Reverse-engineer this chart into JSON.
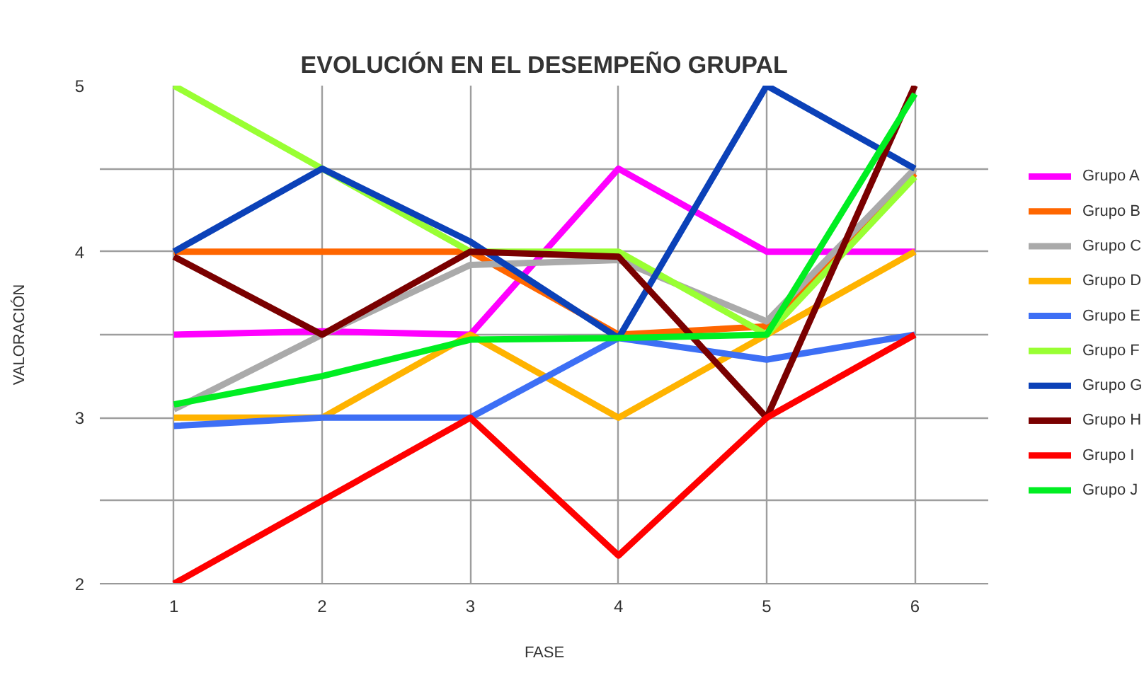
{
  "chart_data": {
    "type": "line",
    "title": "EVOLUCIÓN EN EL DESEMPEÑO GRUPAL",
    "xlabel": "FASE",
    "ylabel": "VALORACIÓN",
    "x": [
      1,
      2,
      3,
      4,
      5,
      6
    ],
    "xlim": [
      0.5,
      6.5
    ],
    "xticks": [
      1,
      2,
      3,
      4,
      5,
      6
    ],
    "ylim": [
      2,
      5
    ],
    "yticks": [
      2,
      {
        "value": 2.5,
        "label": null
      },
      3,
      {
        "value": 3.5,
        "label": null
      },
      4,
      {
        "value": 4.5,
        "label": null
      },
      5
    ],
    "grid": true,
    "legend": "right",
    "line_style": "solid",
    "series": [
      {
        "name": "Grupo A",
        "color": "#ff00ff",
        "values": [
          3.5,
          3.52,
          3.5,
          4.5,
          4,
          4
        ]
      },
      {
        "name": "Grupo B",
        "color": "#ff6600",
        "values": [
          4,
          4,
          4,
          3.5,
          3.55,
          4.47
        ]
      },
      {
        "name": "Grupo C",
        "color": "#aaaaaa",
        "values": [
          3.05,
          3.5,
          3.92,
          3.95,
          3.58,
          4.5
        ]
      },
      {
        "name": "Grupo D",
        "color": "#ffb300",
        "values": [
          3,
          3,
          3.5,
          3,
          3.5,
          4
        ]
      },
      {
        "name": "Grupo E",
        "color": "#3d6ff5",
        "values": [
          2.95,
          3,
          3,
          3.48,
          3.35,
          3.5
        ]
      },
      {
        "name": "Grupo F",
        "color": "#99ff33",
        "values": [
          5,
          4.5,
          4,
          4,
          3.5,
          4.45
        ]
      },
      {
        "name": "Grupo G",
        "color": "#0b41b8",
        "values": [
          4,
          4.5,
          4.06,
          3.48,
          5,
          4.5
        ]
      },
      {
        "name": "Grupo H",
        "color": "#7a0000",
        "values": [
          3.97,
          3.5,
          4,
          3.97,
          3,
          5
        ]
      },
      {
        "name": "Grupo I",
        "color": "#ff0000",
        "values": [
          2,
          2.5,
          3,
          2.17,
          3,
          3.5
        ]
      },
      {
        "name": "Grupo J",
        "color": "#00ee22",
        "values": [
          3.08,
          3.25,
          3.47,
          3.48,
          3.5,
          4.95
        ]
      }
    ]
  }
}
